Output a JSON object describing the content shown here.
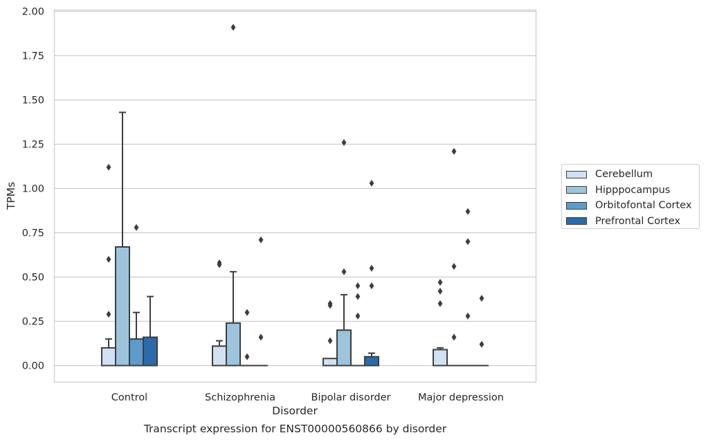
{
  "chart_data": {
    "type": "box",
    "title": "",
    "caption": "Transcript expression for ENST00000560866 by disorder",
    "xlabel": "Disorder",
    "ylabel": "TPMs",
    "ylim": [
      -0.09,
      2.0
    ],
    "yticks": [
      "0.00",
      "0.25",
      "0.50",
      "0.75",
      "1.00",
      "1.25",
      "1.50",
      "1.75",
      "2.00"
    ],
    "grid": true,
    "legend_position": "right",
    "categories": [
      "Control",
      "Schizophrenia",
      "Bipolar disorder",
      "Major depression"
    ],
    "series": [
      {
        "name": "Cerebellum",
        "color": "#d1e0f2",
        "boxes": [
          {
            "q1": 0.0,
            "median": 0.0,
            "q3": 0.1,
            "whisker_low": 0.0,
            "whisker_high": 0.15,
            "outliers": [
              0.29,
              0.6,
              1.12
            ]
          },
          {
            "q1": 0.0,
            "median": 0.0,
            "q3": 0.11,
            "whisker_low": 0.0,
            "whisker_high": 0.14,
            "outliers": [
              0.57,
              0.58
            ]
          },
          {
            "q1": 0.0,
            "median": 0.0,
            "q3": 0.04,
            "whisker_low": 0.0,
            "whisker_high": 0.04,
            "outliers": [
              0.14,
              0.34,
              0.35
            ]
          },
          {
            "q1": 0.0,
            "median": 0.0,
            "q3": 0.09,
            "whisker_low": 0.0,
            "whisker_high": 0.1,
            "outliers": [
              0.35,
              0.42,
              0.47
            ]
          }
        ]
      },
      {
        "name": "Hipppocampus",
        "color": "#9dc3dd",
        "boxes": [
          {
            "q1": 0.0,
            "median": 0.0,
            "q3": 0.67,
            "whisker_low": 0.0,
            "whisker_high": 1.43,
            "outliers": []
          },
          {
            "q1": 0.0,
            "median": 0.0,
            "q3": 0.24,
            "whisker_low": 0.0,
            "whisker_high": 0.53,
            "outliers": [
              1.91
            ]
          },
          {
            "q1": 0.0,
            "median": 0.0,
            "q3": 0.2,
            "whisker_low": 0.0,
            "whisker_high": 0.4,
            "outliers": [
              0.53,
              1.26
            ]
          },
          {
            "q1": 0.0,
            "median": 0.0,
            "q3": 0.0,
            "whisker_low": 0.0,
            "whisker_high": 0.0,
            "outliers": [
              0.16,
              0.56,
              1.21
            ]
          }
        ]
      },
      {
        "name": "Orbitofontal Cortex",
        "color": "#5d9bcb",
        "boxes": [
          {
            "q1": 0.0,
            "median": 0.0,
            "q3": 0.15,
            "whisker_low": 0.0,
            "whisker_high": 0.3,
            "outliers": [
              0.78
            ]
          },
          {
            "q1": 0.0,
            "median": 0.0,
            "q3": 0.0,
            "whisker_low": 0.0,
            "whisker_high": 0.0,
            "outliers": [
              0.05,
              0.3
            ]
          },
          {
            "q1": 0.0,
            "median": 0.0,
            "q3": 0.0,
            "whisker_low": 0.0,
            "whisker_high": 0.0,
            "outliers": [
              0.28,
              0.39,
              0.45
            ]
          },
          {
            "q1": 0.0,
            "median": 0.0,
            "q3": 0.0,
            "whisker_low": 0.0,
            "whisker_high": 0.0,
            "outliers": [
              0.28,
              0.7,
              0.87
            ]
          }
        ]
      },
      {
        "name": "Prefrontal Cortex",
        "color": "#2c6ba9",
        "boxes": [
          {
            "q1": 0.0,
            "median": 0.0,
            "q3": 0.16,
            "whisker_low": 0.0,
            "whisker_high": 0.39,
            "outliers": []
          },
          {
            "q1": 0.0,
            "median": 0.0,
            "q3": 0.0,
            "whisker_low": 0.0,
            "whisker_high": 0.0,
            "outliers": [
              0.16,
              0.71
            ]
          },
          {
            "q1": 0.0,
            "median": 0.0,
            "q3": 0.05,
            "whisker_low": 0.0,
            "whisker_high": 0.07,
            "outliers": [
              0.45,
              0.55,
              1.03
            ]
          },
          {
            "q1": 0.0,
            "median": 0.0,
            "q3": 0.0,
            "whisker_low": 0.0,
            "whisker_high": 0.0,
            "outliers": [
              0.12,
              0.38
            ]
          }
        ]
      }
    ]
  }
}
